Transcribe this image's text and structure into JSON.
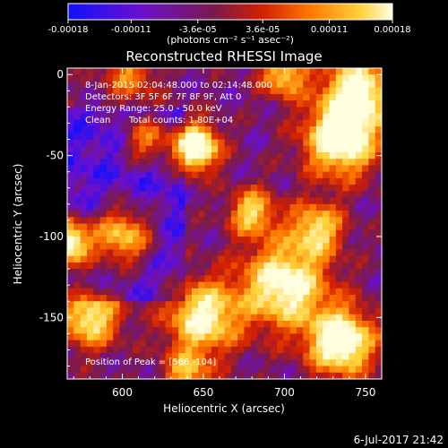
{
  "chart_data": {
    "type": "heatmap",
    "title": "Reconstructed RHESSI Image",
    "xlabel": "Heliocentric X (arcsec)",
    "ylabel": "Heliocentric Y (arcsec)",
    "xlim": [
      566,
      760
    ],
    "ylim": [
      -188,
      4
    ],
    "x_ticks": [
      600,
      650,
      700,
      750
    ],
    "y_ticks": [
      0,
      -50,
      -100,
      -150
    ],
    "colorbar": {
      "tick_labels": [
        "-0.00018",
        "-0.00011",
        "-3.6e-05",
        "3.6e-05",
        "0.00011",
        "0.00018"
      ],
      "tick_values": [
        -0.00018,
        -0.00011,
        -3.6e-05,
        3.6e-05,
        0.00011,
        0.00018
      ],
      "range": [
        -0.00018,
        0.00018
      ],
      "units": "(photons cm⁻² s⁻¹ asec⁻²)",
      "colors": [
        "#1010ff",
        "#6a0fd0",
        "#7a1a4a",
        "#d42000",
        "#ff7a00",
        "#ffd23a",
        "#ffffe0"
      ]
    },
    "annotations": {
      "time_range": "8-Jan-2015 02:04:48.000 to 02:14:48.000",
      "detectors": "Detectors: 3F 5F 6F 7F 8F 9F, Att 0",
      "energy_range": "Energy Range: 25.0 - 50.0 keV",
      "algorithm": "Clean",
      "total_counts": "Total counts: 1.80E+04",
      "peak_position": "Position of Peak = [566,-104]"
    },
    "peak": {
      "x": 566,
      "y": -104
    }
  },
  "footer": {
    "timestamp": "6-Jul-2017 21:42"
  }
}
